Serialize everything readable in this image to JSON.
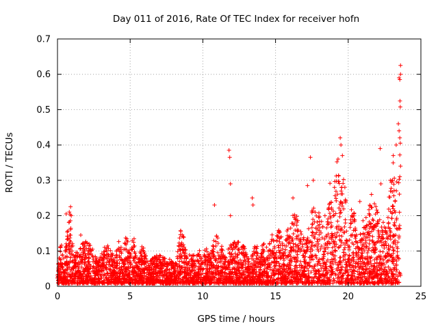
{
  "chart_data": {
    "type": "scatter",
    "title": "Day 011 of 2016, Rate Of TEC Index for receiver hofn",
    "xlabel": "GPS time / hours",
    "ylabel": "ROTI / TECUs",
    "xlim": [
      0,
      25
    ],
    "ylim": [
      0,
      0.7
    ],
    "xticks": [
      0,
      5,
      10,
      15,
      20,
      25
    ],
    "yticks": [
      0,
      0.1,
      0.2,
      0.3,
      0.4,
      0.5,
      0.6,
      0.7
    ],
    "xtick_labels": [
      "0",
      "5",
      "10",
      "15",
      "20",
      "25"
    ],
    "ytick_labels": [
      "0",
      "0.1",
      "0.2",
      "0.3",
      "0.4",
      "0.5",
      "0.6",
      "0.7"
    ],
    "grid": true,
    "marker": "+",
    "series_color": "#ff0000",
    "envelope": {
      "description": "upper extent of dense ROTI scatter at each hour",
      "x": [
        0,
        0.5,
        0.9,
        1.0,
        1.5,
        2.0,
        3.0,
        4.0,
        4.5,
        5.0,
        5.5,
        6.0,
        7.0,
        8.0,
        8.5,
        9.0,
        10.0,
        11.0,
        12.0,
        13.0,
        14.0,
        15.0,
        16.0,
        16.5,
        17.0,
        17.5,
        18.0,
        19.0,
        19.4,
        20.0,
        21.0,
        22.0,
        23.0,
        23.6
      ],
      "y": [
        0.1,
        0.14,
        0.22,
        0.15,
        0.1,
        0.14,
        0.12,
        0.11,
        0.13,
        0.14,
        0.12,
        0.1,
        0.08,
        0.08,
        0.17,
        0.1,
        0.1,
        0.15,
        0.14,
        0.1,
        0.12,
        0.16,
        0.18,
        0.23,
        0.2,
        0.28,
        0.2,
        0.33,
        0.4,
        0.22,
        0.2,
        0.25,
        0.3,
        0.6
      ]
    },
    "outliers": [
      {
        "x": 0.6,
        "y": 0.205
      },
      {
        "x": 0.9,
        "y": 0.225
      },
      {
        "x": 0.95,
        "y": 0.2
      },
      {
        "x": 1.6,
        "y": 0.145
      },
      {
        "x": 10.8,
        "y": 0.23
      },
      {
        "x": 11.8,
        "y": 0.385
      },
      {
        "x": 11.85,
        "y": 0.365
      },
      {
        "x": 11.9,
        "y": 0.29
      },
      {
        "x": 11.9,
        "y": 0.2
      },
      {
        "x": 13.4,
        "y": 0.25
      },
      {
        "x": 13.45,
        "y": 0.23
      },
      {
        "x": 16.2,
        "y": 0.25
      },
      {
        "x": 17.4,
        "y": 0.365
      },
      {
        "x": 17.2,
        "y": 0.285
      },
      {
        "x": 17.6,
        "y": 0.3
      },
      {
        "x": 18.4,
        "y": 0.2
      },
      {
        "x": 19.3,
        "y": 0.36
      },
      {
        "x": 19.45,
        "y": 0.42
      },
      {
        "x": 19.5,
        "y": 0.4
      },
      {
        "x": 19.6,
        "y": 0.37
      },
      {
        "x": 20.8,
        "y": 0.24
      },
      {
        "x": 21.6,
        "y": 0.26
      },
      {
        "x": 22.0,
        "y": 0.21
      },
      {
        "x": 22.2,
        "y": 0.39
      },
      {
        "x": 22.25,
        "y": 0.29
      },
      {
        "x": 22.9,
        "y": 0.3
      },
      {
        "x": 23.1,
        "y": 0.37
      },
      {
        "x": 23.3,
        "y": 0.4
      },
      {
        "x": 23.45,
        "y": 0.46
      },
      {
        "x": 23.5,
        "y": 0.44
      },
      {
        "x": 23.55,
        "y": 0.42
      },
      {
        "x": 23.5,
        "y": 0.59
      },
      {
        "x": 23.55,
        "y": 0.585
      },
      {
        "x": 23.6,
        "y": 0.6
      },
      {
        "x": 23.6,
        "y": 0.625
      },
      {
        "x": 23.6,
        "y": 0.34
      },
      {
        "x": 23.55,
        "y": 0.31
      }
    ]
  }
}
